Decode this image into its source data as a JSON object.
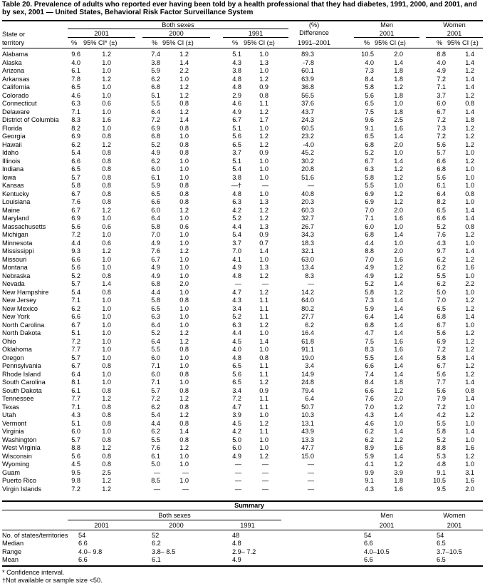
{
  "title": "Table 20. Prevalence of adults who reported ever having been told by a health professional that they had diabetes, 1991, 2000, and 2001, and by sex, 2001 — United States, Behavioral Risk Factor Surveillance System",
  "headers": {
    "both_sexes": "Both sexes",
    "pct_diff_1": "(%)",
    "pct_diff_2": "Difference",
    "pct_diff_3": "1991–2001",
    "men": "Men",
    "women": "Women",
    "state_1": "State or",
    "state_2": "territory",
    "y2001": "2001",
    "y2000": "2000",
    "y1991": "1991",
    "pct": "%",
    "ci_first": "95% CI* (±)",
    "ci": "95% CI (±)"
  },
  "rows": [
    [
      "Alabama",
      "9.6",
      "1.2",
      "7.4",
      "1.2",
      "5.1",
      "1.0",
      "89.3",
      "10.5",
      "2.0",
      "8.8",
      "1.4"
    ],
    [
      "Alaska",
      "4.0",
      "1.0",
      "3.8",
      "1.4",
      "4.3",
      "1.3",
      "-7.8",
      "4.0",
      "1.4",
      "4.0",
      "1.4"
    ],
    [
      "Arizona",
      "6.1",
      "1.0",
      "5.9",
      "2.2",
      "3.8",
      "1.0",
      "60.1",
      "7.3",
      "1.8",
      "4.9",
      "1.2"
    ],
    [
      "Arkansas",
      "7.8",
      "1.2",
      "6.2",
      "1.0",
      "4.8",
      "1.2",
      "63.9",
      "8.4",
      "1.8",
      "7.2",
      "1.4"
    ],
    [
      "California",
      "6.5",
      "1.0",
      "6.8",
      "1.2",
      "4.8",
      "0.9",
      "36.8",
      "5.8",
      "1.2",
      "7.1",
      "1.4"
    ],
    [
      "Colorado",
      "4.6",
      "1.0",
      "5.1",
      "1.2",
      "2.9",
      "0.8",
      "56.5",
      "5.6",
      "1.8",
      "3.7",
      "1.2"
    ],
    [
      "Connecticut",
      "6.3",
      "0.6",
      "5.5",
      "0.8",
      "4.6",
      "1.1",
      "37.6",
      "6.5",
      "1.0",
      "6.0",
      "0.8"
    ],
    [
      "Delaware",
      "7.1",
      "1.0",
      "6.4",
      "1.2",
      "4.9",
      "1.2",
      "43.7",
      "7.5",
      "1.8",
      "6.7",
      "1.4"
    ],
    [
      "District of Columbia",
      "8.3",
      "1.6",
      "7.2",
      "1.4",
      "6.7",
      "1.7",
      "24.3",
      "9.6",
      "2.5",
      "7.2",
      "1.8"
    ],
    [
      "Florida",
      "8.2",
      "1.0",
      "6.9",
      "0.8",
      "5.1",
      "1.0",
      "60.5",
      "9.1",
      "1.6",
      "7.3",
      "1.2"
    ],
    [
      "Georgia",
      "6.9",
      "0.8",
      "6.8",
      "1.0",
      "5.6",
      "1.2",
      "23.2",
      "6.5",
      "1.4",
      "7.2",
      "1.2"
    ],
    [
      "Hawaii",
      "6.2",
      "1.2",
      "5.2",
      "0.8",
      "6.5",
      "1.2",
      "-4.0",
      "6.8",
      "2.0",
      "5.6",
      "1.2"
    ],
    [
      "Idaho",
      "5.4",
      "0.8",
      "4.9",
      "0.8",
      "3.7",
      "0.9",
      "45.2",
      "5.2",
      "1.0",
      "5.7",
      "1.0"
    ],
    [
      "Illinois",
      "6.6",
      "0.8",
      "6.2",
      "1.0",
      "5.1",
      "1.0",
      "30.2",
      "6.7",
      "1.4",
      "6.6",
      "1.2"
    ],
    [
      "Indiana",
      "6.5",
      "0.8",
      "6.0",
      "1.0",
      "5.4",
      "1.0",
      "20.8",
      "6.3",
      "1.2",
      "6.8",
      "1.0"
    ],
    [
      "Iowa",
      "5.7",
      "0.8",
      "6.1",
      "1.0",
      "3.8",
      "1.0",
      "51.6",
      "5.8",
      "1.2",
      "5.6",
      "1.0"
    ],
    [
      "Kansas",
      "5.8",
      "0.8",
      "5.9",
      "0.8",
      "—†",
      "—",
      "—",
      "5.5",
      "1.0",
      "6.1",
      "1.0"
    ],
    [
      "Kentucky",
      "6.7",
      "0.8",
      "6.5",
      "0.8",
      "4.8",
      "1.0",
      "40.8",
      "6.9",
      "1.2",
      "6.4",
      "0.8"
    ],
    [
      "Louisiana",
      "7.6",
      "0.8",
      "6.6",
      "0.8",
      "6.3",
      "1.3",
      "20.3",
      "6.9",
      "1.2",
      "8.2",
      "1.0"
    ],
    [
      "Maine",
      "6.7",
      "1.2",
      "6.0",
      "1.2",
      "4.2",
      "1.2",
      "60.3",
      "7.0",
      "2.0",
      "6.5",
      "1.4"
    ],
    [
      "Maryland",
      "6.9",
      "1.0",
      "6.4",
      "1.0",
      "5.2",
      "1.2",
      "32.7",
      "7.1",
      "1.6",
      "6.6",
      "1.4"
    ],
    [
      "Massachusetts",
      "5.6",
      "0.6",
      "5.8",
      "0.6",
      "4.4",
      "1.3",
      "26.7",
      "6.0",
      "1.0",
      "5.2",
      "0.8"
    ],
    [
      "Michigan",
      "7.2",
      "1.0",
      "7.0",
      "1.0",
      "5.4",
      "0.9",
      "34.3",
      "6.8",
      "1.4",
      "7.6",
      "1.2"
    ],
    [
      "Minnesota",
      "4.4",
      "0.6",
      "4.9",
      "1.0",
      "3.7",
      "0.7",
      "18.3",
      "4.4",
      "1.0",
      "4.3",
      "1.0"
    ],
    [
      "Mississippi",
      "9.3",
      "1.2",
      "7.6",
      "1.2",
      "7.0",
      "1.4",
      "32.1",
      "8.8",
      "2.0",
      "9.7",
      "1.4"
    ],
    [
      "Missouri",
      "6.6",
      "1.0",
      "6.7",
      "1.0",
      "4.1",
      "1.0",
      "63.0",
      "7.0",
      "1.6",
      "6.2",
      "1.2"
    ],
    [
      "Montana",
      "5.6",
      "1.0",
      "4.9",
      "1.0",
      "4.9",
      "1.3",
      "13.4",
      "4.9",
      "1.2",
      "6.2",
      "1.6"
    ],
    [
      "Nebraska",
      "5.2",
      "0.8",
      "4.9",
      "1.0",
      "4.8",
      "1.2",
      "8.3",
      "4.9",
      "1.2",
      "5.5",
      "1.0"
    ],
    [
      "Nevada",
      "5.7",
      "1.4",
      "6.8",
      "2.0",
      "—",
      "—",
      "—",
      "5.2",
      "1.4",
      "6.2",
      "2.2"
    ],
    [
      "New Hampshire",
      "5.4",
      "0.8",
      "4.4",
      "1.0",
      "4.7",
      "1.2",
      "14.2",
      "5.8",
      "1.2",
      "5.0",
      "1.0"
    ],
    [
      "New Jersey",
      "7.1",
      "1.0",
      "5.8",
      "0.8",
      "4.3",
      "1.1",
      "64.0",
      "7.3",
      "1.4",
      "7.0",
      "1.2"
    ],
    [
      "New Mexico",
      "6.2",
      "1.0",
      "6.5",
      "1.0",
      "3.4",
      "1.1",
      "80.2",
      "5.9",
      "1.4",
      "6.5",
      "1.2"
    ],
    [
      "New York",
      "6.6",
      "1.0",
      "6.3",
      "1.0",
      "5.2",
      "1.1",
      "27.7",
      "6.4",
      "1.4",
      "6.8",
      "1.4"
    ],
    [
      "North Carolina",
      "6.7",
      "1.0",
      "6.4",
      "1.0",
      "6.3",
      "1.2",
      "6.2",
      "6.8",
      "1.4",
      "6.7",
      "1.0"
    ],
    [
      "North Dakota",
      "5.1",
      "1.0",
      "5.2",
      "1.2",
      "4.4",
      "1.0",
      "16.4",
      "4.7",
      "1.4",
      "5.6",
      "1.2"
    ],
    [
      "Ohio",
      "7.2",
      "1.0",
      "6.4",
      "1.2",
      "4.5",
      "1.4",
      "61.8",
      "7.5",
      "1.6",
      "6.9",
      "1.2"
    ],
    [
      "Oklahoma",
      "7.7",
      "1.0",
      "5.5",
      "0.8",
      "4.0",
      "1.0",
      "91.1",
      "8.3",
      "1.6",
      "7.2",
      "1.2"
    ],
    [
      "Oregon",
      "5.7",
      "1.0",
      "6.0",
      "1.0",
      "4.8",
      "0.8",
      "19.0",
      "5.5",
      "1.4",
      "5.8",
      "1.4"
    ],
    [
      "Pennsylvania",
      "6.7",
      "0.8",
      "7.1",
      "1.0",
      "6.5",
      "1.1",
      "3.4",
      "6.6",
      "1.4",
      "6.7",
      "1.2"
    ],
    [
      "Rhode Island",
      "6.4",
      "1.0",
      "6.0",
      "0.8",
      "5.6",
      "1.1",
      "14.9",
      "7.4",
      "1.4",
      "5.6",
      "1.2"
    ],
    [
      "South Carolina",
      "8.1",
      "1.0",
      "7.1",
      "1.0",
      "6.5",
      "1.2",
      "24.8",
      "8.4",
      "1.8",
      "7.7",
      "1.4"
    ],
    [
      "South Dakota",
      "6.1",
      "0.8",
      "5.7",
      "0.8",
      "3.4",
      "0.9",
      "79.4",
      "6.6",
      "1.2",
      "5.6",
      "0.8"
    ],
    [
      "Tennessee",
      "7.7",
      "1.2",
      "7.2",
      "1.2",
      "7.2",
      "1.1",
      "6.4",
      "7.6",
      "2.0",
      "7.9",
      "1.4"
    ],
    [
      "Texas",
      "7.1",
      "0.8",
      "6.2",
      "0.8",
      "4.7",
      "1.1",
      "50.7",
      "7.0",
      "1.2",
      "7.2",
      "1.0"
    ],
    [
      "Utah",
      "4.3",
      "0.8",
      "5.4",
      "1.2",
      "3.9",
      "1.0",
      "10.3",
      "4.3",
      "1.4",
      "4.2",
      "1.2"
    ],
    [
      "Vermont",
      "5.1",
      "0.8",
      "4.4",
      "0.8",
      "4.5",
      "1.2",
      "13.1",
      "4.6",
      "1.0",
      "5.5",
      "1.0"
    ],
    [
      "Virginia",
      "6.0",
      "1.0",
      "6.2",
      "1.4",
      "4.2",
      "1.1",
      "43.9",
      "6.2",
      "1.4",
      "5.8",
      "1.4"
    ],
    [
      "Washington",
      "5.7",
      "0.8",
      "5.5",
      "0.8",
      "5.0",
      "1.0",
      "13.3",
      "6.2",
      "1.2",
      "5.2",
      "1.0"
    ],
    [
      "West Virginia",
      "8.8",
      "1.2",
      "7.6",
      "1.2",
      "6.0",
      "1.0",
      "47.7",
      "8.9",
      "1.6",
      "8.8",
      "1.6"
    ],
    [
      "Wisconsin",
      "5.6",
      "0.8",
      "6.1",
      "1.0",
      "4.9",
      "1.2",
      "15.0",
      "5.9",
      "1.4",
      "5.3",
      "1.2"
    ],
    [
      "Wyoming",
      "4.5",
      "0.8",
      "5.0",
      "1.0",
      "—",
      "—",
      "—",
      "4.1",
      "1.2",
      "4.8",
      "1.0"
    ],
    [
      "Guam",
      "9.5",
      "2.5",
      "—",
      "—",
      "—",
      "—",
      "—",
      "9.9",
      "3.9",
      "9.1",
      "3.1"
    ],
    [
      "Puerto Rico",
      "9.8",
      "1.2",
      "8.5",
      "1.0",
      "—",
      "—",
      "—",
      "9.1",
      "1.8",
      "10.5",
      "1.6"
    ],
    [
      "Virgin Islands",
      "7.2",
      "1.2",
      "—",
      "—",
      "—",
      "—",
      "—",
      "4.3",
      "1.6",
      "9.5",
      "2.0"
    ]
  ],
  "summary": {
    "title": "Summary",
    "both_sexes": "Both sexes",
    "men": "Men",
    "women": "Women",
    "y2001": "2001",
    "y2000": "2000",
    "y1991": "1991",
    "rows": [
      [
        "No. of states/territories",
        "54",
        "52",
        "48",
        "54",
        "54"
      ],
      [
        "Median",
        "6.6",
        "6.2",
        "4.8",
        "6.6",
        "6.5"
      ],
      [
        "Range",
        "4.0– 9.8",
        "3.8– 8.5",
        "2.9– 7.2",
        "4.0–10.5",
        "3.7–10.5"
      ],
      [
        "Mean",
        "6.6",
        "6.1",
        "4.9",
        "6.6",
        "6.5"
      ]
    ]
  },
  "footnotes": {
    "f1": "* Confidence interval.",
    "f2": "†Not available or sample size <50."
  }
}
